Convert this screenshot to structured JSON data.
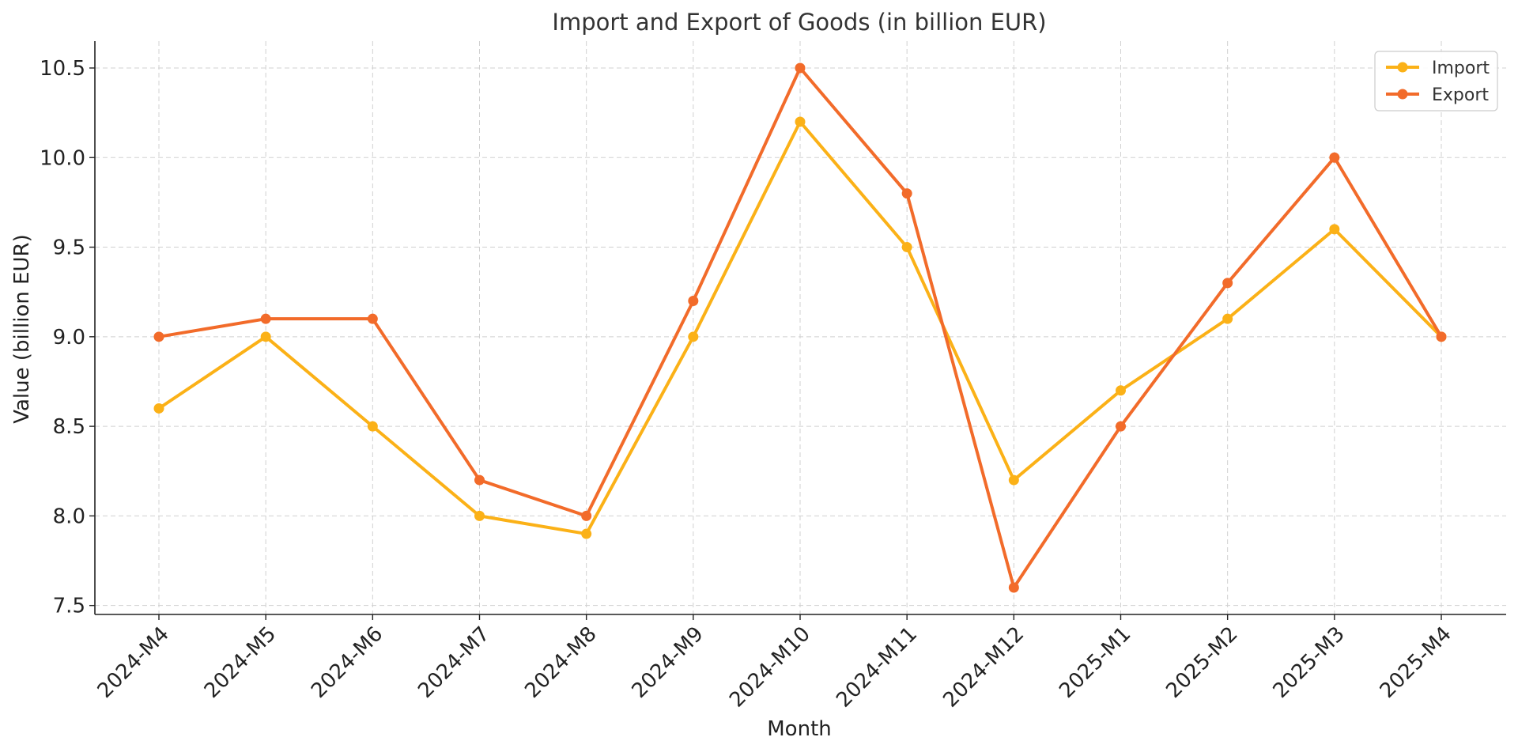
{
  "chart_data": {
    "type": "line",
    "title": "Import and Export of Goods (in billion EUR)",
    "xlabel": "Month",
    "ylabel": "Value (billion EUR)",
    "categories": [
      "2024-M4",
      "2024-M5",
      "2024-M6",
      "2024-M7",
      "2024-M8",
      "2024-M9",
      "2024-M10",
      "2024-M11",
      "2024-M12",
      "2025-M1",
      "2025-M2",
      "2025-M3",
      "2025-M4"
    ],
    "yticks": [
      7.5,
      8.0,
      8.5,
      9.0,
      9.5,
      10.0,
      10.5
    ],
    "ytick_labels": [
      "7.5",
      "8.0",
      "8.5",
      "9.0",
      "9.5",
      "10.0",
      "10.5"
    ],
    "ylim": [
      7.45,
      10.65
    ],
    "grid": true,
    "legend_position": "top-right",
    "series": [
      {
        "name": "Import",
        "color": "#FBB117",
        "values": [
          8.6,
          9.0,
          8.5,
          8.0,
          7.9,
          9.0,
          10.2,
          9.5,
          8.2,
          8.7,
          9.1,
          9.6,
          9.0
        ]
      },
      {
        "name": "Export",
        "color": "#F26B2A",
        "values": [
          9.0,
          9.1,
          9.1,
          8.2,
          8.0,
          9.2,
          10.5,
          9.8,
          7.6,
          8.5,
          9.3,
          10.0,
          9.0
        ]
      }
    ]
  }
}
